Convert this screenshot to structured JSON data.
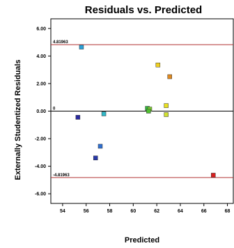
{
  "chart_data": {
    "type": "scatter",
    "title": "Residuals vs. Predicted",
    "xlabel": "Predicted",
    "ylabel": "Externally Studentized Residuals",
    "xlim": [
      53,
      68.5
    ],
    "ylim": [
      -6.7,
      6.7
    ],
    "x_ticks": [
      "54",
      "56",
      "58",
      "60",
      "62",
      "64",
      "66",
      "68"
    ],
    "y_ticks": [
      "-6.00",
      "-4.00",
      "-2.00",
      "0.00",
      "2.00",
      "4.00",
      "6.00"
    ],
    "reference_lines": [
      {
        "value": 4.81963,
        "label": "4.81963",
        "color": "#b03030"
      },
      {
        "value": 0,
        "label": "0",
        "color": "#000000"
      },
      {
        "value": -4.81963,
        "label": "-4.81963",
        "color": "#b03030"
      }
    ],
    "points": [
      {
        "x": 55.6,
        "y": 4.65,
        "color": "#2aa0d8"
      },
      {
        "x": 55.3,
        "y": -0.45,
        "color": "#2a2aa0"
      },
      {
        "x": 57.5,
        "y": -0.2,
        "color": "#30b8c8"
      },
      {
        "x": 57.2,
        "y": -2.55,
        "color": "#2f6fd0"
      },
      {
        "x": 56.8,
        "y": -3.4,
        "color": "#2838a8"
      },
      {
        "x": 61.2,
        "y": 0.2,
        "color": "#30c040"
      },
      {
        "x": 61.4,
        "y": 0.15,
        "color": "#80d030"
      },
      {
        "x": 61.3,
        "y": 0.0,
        "color": "#50c030"
      },
      {
        "x": 62.1,
        "y": 3.35,
        "color": "#f0d020"
      },
      {
        "x": 63.1,
        "y": 2.5,
        "color": "#e08a20"
      },
      {
        "x": 62.8,
        "y": 0.4,
        "color": "#e8e020"
      },
      {
        "x": 62.8,
        "y": -0.25,
        "color": "#d0e030"
      },
      {
        "x": 66.8,
        "y": -4.65,
        "color": "#d82020"
      }
    ]
  }
}
